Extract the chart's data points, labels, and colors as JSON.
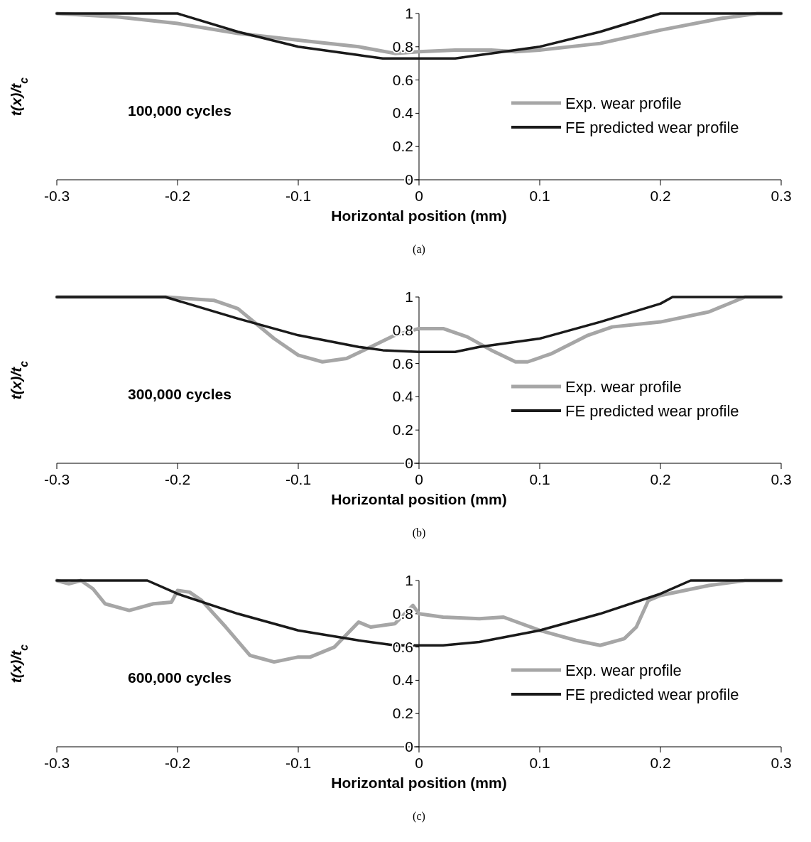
{
  "chart_data": [
    {
      "type": "line",
      "xlabel": "Horizontal position (mm)",
      "ylabel": "t(x)/t$_{c}$",
      "xlim": [
        -0.3,
        0.3
      ],
      "xticks": [
        -0.3,
        -0.2,
        -0.1,
        0,
        0.1,
        0.2,
        0.3
      ],
      "ylim": [
        0,
        1
      ],
      "yticks": [
        0,
        0.2,
        0.4,
        0.6,
        0.8,
        1
      ],
      "legend": "right",
      "annotations": [
        "100,000 cycles",
        "(a)"
      ],
      "series": [
        {
          "name": "Exp. wear profile",
          "color": "#a6a6a6",
          "x": [
            -0.3,
            -0.25,
            -0.2,
            -0.15,
            -0.1,
            -0.05,
            -0.02,
            0,
            0.03,
            0.06,
            0.08,
            0.1,
            0.15,
            0.2,
            0.25,
            0.28,
            0.3
          ],
          "values": [
            1,
            0.98,
            0.94,
            0.88,
            0.84,
            0.8,
            0.76,
            0.77,
            0.78,
            0.78,
            0.77,
            0.78,
            0.82,
            0.9,
            0.97,
            1,
            1
          ]
        },
        {
          "name": "FE predicted wear profile",
          "color": "#1a1a1a",
          "x": [
            -0.3,
            -0.2,
            -0.15,
            -0.1,
            -0.05,
            -0.03,
            0,
            0.03,
            0.05,
            0.1,
            0.15,
            0.2,
            0.3
          ],
          "values": [
            1,
            1,
            0.89,
            0.8,
            0.75,
            0.73,
            0.73,
            0.73,
            0.75,
            0.8,
            0.89,
            1,
            1
          ]
        }
      ]
    },
    {
      "type": "line",
      "xlabel": "Horizontal position (mm)",
      "ylabel": "t(x)/t$_{c}$",
      "xlim": [
        -0.3,
        0.3
      ],
      "xticks": [
        -0.3,
        -0.2,
        -0.1,
        0,
        0.1,
        0.2,
        0.3
      ],
      "ylim": [
        0,
        1
      ],
      "yticks": [
        0,
        0.2,
        0.4,
        0.6,
        0.8,
        1
      ],
      "legend": "right",
      "annotations": [
        "300,000 cycles",
        "(b)"
      ],
      "series": [
        {
          "name": "Exp. wear profile",
          "color": "#a6a6a6",
          "x": [
            -0.3,
            -0.21,
            -0.17,
            -0.15,
            -0.12,
            -0.1,
            -0.08,
            -0.06,
            -0.04,
            -0.02,
            0,
            0.02,
            0.04,
            0.06,
            0.08,
            0.09,
            0.11,
            0.14,
            0.16,
            0.2,
            0.24,
            0.27,
            0.3
          ],
          "values": [
            1,
            1,
            0.98,
            0.93,
            0.75,
            0.65,
            0.61,
            0.63,
            0.7,
            0.77,
            0.81,
            0.81,
            0.76,
            0.68,
            0.61,
            0.61,
            0.66,
            0.77,
            0.82,
            0.85,
            0.91,
            1,
            1
          ]
        },
        {
          "name": "FE predicted wear profile",
          "color": "#1a1a1a",
          "x": [
            -0.3,
            -0.21,
            -0.15,
            -0.1,
            -0.05,
            -0.03,
            0,
            0.03,
            0.05,
            0.1,
            0.15,
            0.2,
            0.21,
            0.3
          ],
          "values": [
            1,
            1,
            0.87,
            0.77,
            0.7,
            0.68,
            0.67,
            0.67,
            0.7,
            0.75,
            0.85,
            0.96,
            1,
            1
          ]
        }
      ]
    },
    {
      "type": "line",
      "xlabel": "Horizontal position (mm)",
      "ylabel": "t(x)/t$_{c}$",
      "xlim": [
        -0.3,
        0.3
      ],
      "xticks": [
        -0.3,
        -0.2,
        -0.1,
        0,
        0.1,
        0.2,
        0.3
      ],
      "ylim": [
        0,
        1
      ],
      "yticks": [
        0,
        0.2,
        0.4,
        0.6,
        0.8,
        1
      ],
      "legend": "right",
      "annotations": [
        "600,000 cycles",
        "(c)"
      ],
      "series": [
        {
          "name": "Exp. wear profile",
          "color": "#a6a6a6",
          "x": [
            -0.3,
            -0.29,
            -0.28,
            -0.27,
            -0.26,
            -0.24,
            -0.22,
            -0.205,
            -0.2,
            -0.19,
            -0.18,
            -0.16,
            -0.14,
            -0.13,
            -0.12,
            -0.1,
            -0.09,
            -0.07,
            -0.05,
            -0.04,
            -0.02,
            -0.005,
            0,
            0.02,
            0.05,
            0.07,
            0.1,
            0.13,
            0.15,
            0.17,
            0.18,
            0.19,
            0.2,
            0.24,
            0.27,
            0.3
          ],
          "values": [
            1,
            0.98,
            1,
            0.95,
            0.86,
            0.82,
            0.86,
            0.87,
            0.94,
            0.93,
            0.88,
            0.72,
            0.55,
            0.53,
            0.51,
            0.54,
            0.54,
            0.6,
            0.75,
            0.72,
            0.74,
            0.85,
            0.8,
            0.78,
            0.77,
            0.78,
            0.7,
            0.64,
            0.61,
            0.65,
            0.72,
            0.88,
            0.91,
            0.97,
            1,
            1
          ]
        },
        {
          "name": "FE predicted wear profile",
          "color": "#1a1a1a",
          "x": [
            -0.3,
            -0.225,
            -0.2,
            -0.15,
            -0.1,
            -0.05,
            -0.02,
            0.02,
            0.05,
            0.1,
            0.15,
            0.2,
            0.225,
            0.3
          ],
          "values": [
            1,
            1,
            0.92,
            0.8,
            0.7,
            0.64,
            0.61,
            0.61,
            0.63,
            0.7,
            0.8,
            0.92,
            1,
            1
          ]
        }
      ]
    }
  ]
}
